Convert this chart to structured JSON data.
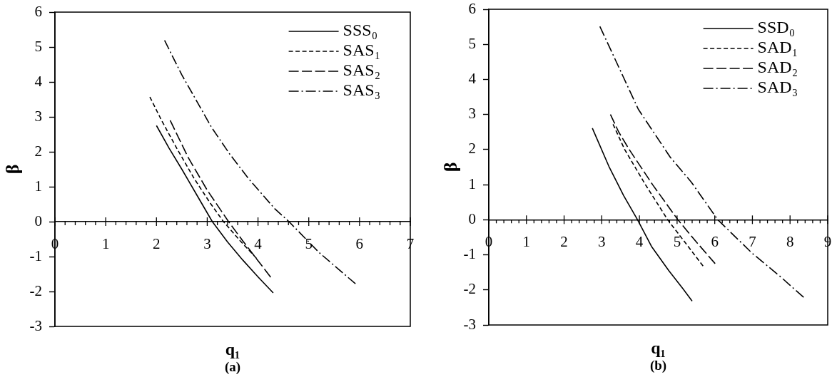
{
  "chart_data": [
    {
      "type": "line",
      "xlabel": "q₁",
      "ylabel": "β",
      "annotations": [
        "(a)"
      ],
      "xlim": [
        0,
        7
      ],
      "ylim": [
        -3,
        6
      ],
      "xticks": [
        0,
        {
          "value": 0.2,
          "label": null
        },
        {
          "value": 0.4,
          "label": null
        },
        {
          "value": 0.6,
          "label": null
        },
        {
          "value": 0.8,
          "label": null
        },
        1,
        {
          "value": 1.2,
          "label": null
        },
        {
          "value": 1.4,
          "label": null
        },
        {
          "value": 1.6,
          "label": null
        },
        {
          "value": 1.8,
          "label": null
        },
        2,
        {
          "value": 2.2,
          "label": null
        },
        {
          "value": 2.4,
          "label": null
        },
        {
          "value": 2.6,
          "label": null
        },
        {
          "value": 2.8,
          "label": null
        },
        3,
        {
          "value": 3.2,
          "label": null
        },
        {
          "value": 3.4,
          "label": null
        },
        {
          "value": 3.6,
          "label": null
        },
        {
          "value": 3.8,
          "label": null
        },
        4,
        {
          "value": 4.2,
          "label": null
        },
        {
          "value": 4.4,
          "label": null
        },
        {
          "value": 4.6,
          "label": null
        },
        {
          "value": 4.8,
          "label": null
        },
        5,
        {
          "value": 5.2,
          "label": null
        },
        {
          "value": 5.4,
          "label": null
        },
        {
          "value": 5.6,
          "label": null
        },
        {
          "value": 5.8,
          "label": null
        },
        6,
        {
          "value": 6.2,
          "label": null
        },
        {
          "value": 6.4,
          "label": null
        },
        {
          "value": 6.6,
          "label": null
        },
        {
          "value": 6.8,
          "label": null
        },
        7
      ],
      "yticks": [
        -3,
        -2,
        -1,
        0,
        1,
        2,
        3,
        4,
        5,
        6
      ],
      "legend": "top right",
      "marker": "none",
      "series": [
        {
          "name": "SSS₀",
          "color": "#000000",
          "line_style": "solid",
          "x": [
            2.0,
            2.25,
            2.5,
            2.8,
            3.1,
            3.4,
            3.7,
            4.0,
            4.3
          ],
          "values": [
            2.75,
            2.1,
            1.5,
            0.75,
            0,
            -0.58,
            -1.1,
            -1.58,
            -2.04
          ]
        },
        {
          "name": "SAS₁",
          "color": "#000000",
          "line_style": "dotted",
          "x": [
            1.87,
            2.1,
            2.4,
            2.74,
            3.05,
            3.32,
            3.65,
            3.97
          ],
          "values": [
            3.57,
            2.9,
            2.1,
            1.24,
            0.55,
            0,
            -0.55,
            -1.05
          ]
        },
        {
          "name": "SAS₂",
          "color": "#000000",
          "line_style": "dashed",
          "x": [
            2.27,
            2.62,
            3.0,
            3.42,
            3.7,
            3.98,
            4.25
          ],
          "values": [
            2.9,
            1.85,
            0.9,
            0,
            -0.55,
            -1.08,
            -1.59
          ]
        },
        {
          "name": "SAS₃",
          "color": "#000000",
          "line_style": "dashdot",
          "x": [
            2.16,
            2.5,
            2.86,
            3.08,
            3.45,
            3.82,
            4.33,
            4.61,
            5.2,
            5.92
          ],
          "values": [
            5.19,
            4.2,
            3.28,
            2.71,
            1.92,
            1.22,
            0.37,
            0,
            -0.88,
            -1.78
          ]
        }
      ]
    },
    {
      "type": "line",
      "xlabel": "q₁",
      "ylabel": "β",
      "annotations": [
        "(b)"
      ],
      "xlim": [
        0,
        9
      ],
      "ylim": [
        -3,
        6
      ],
      "xticks": [
        0,
        {
          "value": 0.2,
          "label": null
        },
        {
          "value": 0.4,
          "label": null
        },
        {
          "value": 0.6,
          "label": null
        },
        {
          "value": 0.8,
          "label": null
        },
        1,
        {
          "value": 1.2,
          "label": null
        },
        {
          "value": 1.4,
          "label": null
        },
        {
          "value": 1.6,
          "label": null
        },
        {
          "value": 1.8,
          "label": null
        },
        2,
        {
          "value": 2.2,
          "label": null
        },
        {
          "value": 2.4,
          "label": null
        },
        {
          "value": 2.6,
          "label": null
        },
        {
          "value": 2.8,
          "label": null
        },
        3,
        {
          "value": 3.2,
          "label": null
        },
        {
          "value": 3.4,
          "label": null
        },
        {
          "value": 3.6,
          "label": null
        },
        {
          "value": 3.8,
          "label": null
        },
        4,
        {
          "value": 4.2,
          "label": null
        },
        {
          "value": 4.4,
          "label": null
        },
        {
          "value": 4.6,
          "label": null
        },
        {
          "value": 4.8,
          "label": null
        },
        5,
        {
          "value": 5.2,
          "label": null
        },
        {
          "value": 5.4,
          "label": null
        },
        {
          "value": 5.6,
          "label": null
        },
        {
          "value": 5.8,
          "label": null
        },
        6,
        {
          "value": 6.2,
          "label": null
        },
        {
          "value": 6.4,
          "label": null
        },
        {
          "value": 6.6,
          "label": null
        },
        {
          "value": 6.8,
          "label": null
        },
        7,
        {
          "value": 7.2,
          "label": null
        },
        {
          "value": 7.4,
          "label": null
        },
        {
          "value": 7.6,
          "label": null
        },
        {
          "value": 7.8,
          "label": null
        },
        8,
        {
          "value": 8.2,
          "label": null
        },
        {
          "value": 8.4,
          "label": null
        },
        {
          "value": 8.6,
          "label": null
        },
        {
          "value": 8.8,
          "label": null
        },
        9
      ],
      "yticks": [
        -3,
        -2,
        -1,
        0,
        1,
        2,
        3,
        4,
        5,
        6
      ],
      "legend": "top right",
      "marker": "none",
      "series": [
        {
          "name": "SSD₀",
          "color": "#000000",
          "line_style": "solid",
          "x": [
            2.75,
            3.19,
            3.58,
            3.95,
            4.32,
            4.78,
            5.15,
            5.4
          ],
          "values": [
            2.61,
            1.52,
            0.69,
            0,
            -0.76,
            -1.45,
            -1.96,
            -2.32
          ]
        },
        {
          "name": "SAD₁",
          "color": "#000000",
          "line_style": "dotted",
          "x": [
            3.3,
            3.61,
            4.16,
            4.75,
            5.2,
            5.69
          ],
          "values": [
            2.72,
            2.0,
            1.0,
            0,
            -0.63,
            -1.32
          ]
        },
        {
          "name": "SAD₂",
          "color": "#000000",
          "line_style": "dashed",
          "x": [
            3.23,
            3.45,
            3.73,
            4.35,
            5.02,
            5.5,
            6.01
          ],
          "values": [
            3.0,
            2.5,
            2.0,
            1.0,
            0,
            -0.62,
            -1.25
          ]
        },
        {
          "name": "SAD₃",
          "color": "#000000",
          "line_style": "dashdot",
          "x": [
            2.95,
            3.97,
            4.82,
            5.38,
            6.08,
            7.0,
            7.73,
            8.36
          ],
          "values": [
            5.51,
            3.15,
            1.78,
            1.07,
            0,
            -0.96,
            -1.61,
            -2.21
          ]
        }
      ]
    }
  ]
}
